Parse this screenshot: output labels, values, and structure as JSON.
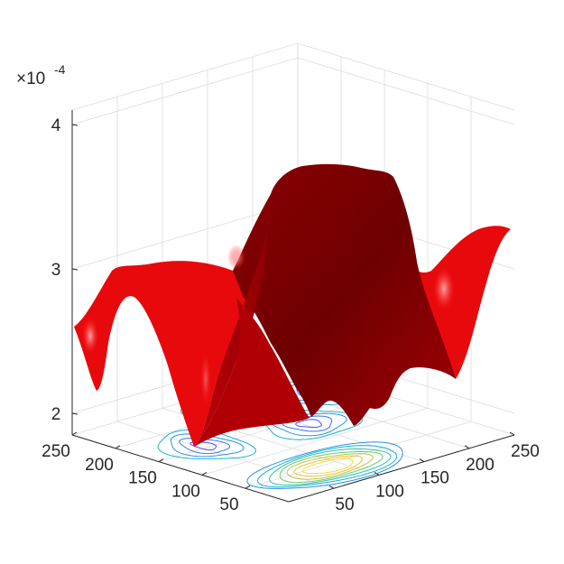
{
  "chart_data": {
    "type": "surface",
    "title": "",
    "xlabel": "",
    "ylabel": "",
    "zlabel": "",
    "xlim": [
      0,
      250
    ],
    "ylim": [
      0,
      250
    ],
    "zlim": [
      1.85,
      4.1
    ],
    "z_exponent": {
      "prefix": "×10",
      "power": "-4"
    },
    "x_ticks": [
      50,
      100,
      150,
      200,
      250
    ],
    "y_ticks": [
      50,
      100,
      150,
      200,
      250
    ],
    "z_ticks": [
      2,
      3,
      4
    ],
    "x_tick_labels": [
      "50",
      "100",
      "150",
      "200",
      "250"
    ],
    "y_tick_labels": [
      "50",
      "100",
      "150",
      "200",
      "250"
    ],
    "z_tick_labels": [
      "2",
      "3",
      "4"
    ],
    "grid": true,
    "surface_color": "#e8090c",
    "contour_projection": "base",
    "contour_colormap": "parula",
    "surface_peak_z": 3.75,
    "surface_min_z": 1.85
  }
}
